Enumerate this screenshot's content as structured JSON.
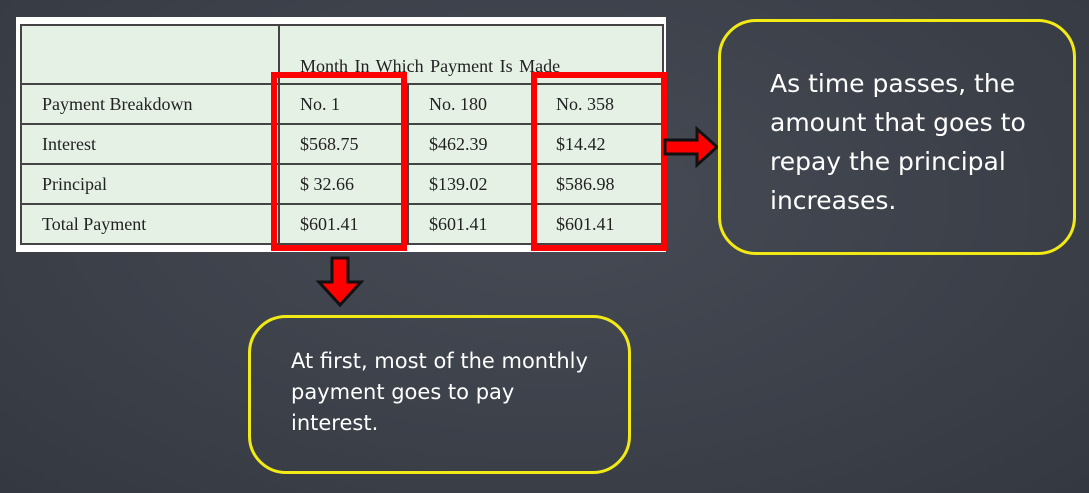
{
  "table": {
    "header": {
      "corner": "",
      "group_label": "Month  In Which Payment  Is Made"
    },
    "rows": [
      {
        "label": "Payment   Breakdown",
        "values": [
          "No. 1",
          "No. 180",
          "No. 358"
        ]
      },
      {
        "label": "Interest",
        "values": [
          "$568.75",
          "$462.39",
          "$14.42"
        ]
      },
      {
        "label": "Principal",
        "values": [
          "$ 32.66",
          "$139.02",
          "$586.98"
        ]
      },
      {
        "label": "Total Payment",
        "values": [
          "$601.41",
          "$601.41",
          "$601.41"
        ]
      }
    ]
  },
  "callouts": {
    "right": "As time passes, the amount that goes to repay the principal increases.",
    "bottom": "At first, most of the monthly payment goes to pay interest."
  },
  "colors": {
    "highlight": "#ff0000",
    "callout_border": "#f2ea14",
    "background": "#3c4049"
  },
  "icons": {
    "right_arrow": "arrow-right-icon",
    "down_arrow": "arrow-down-icon"
  }
}
